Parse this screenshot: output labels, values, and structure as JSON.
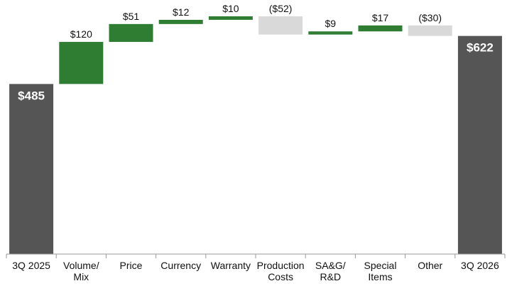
{
  "chart_data": {
    "type": "waterfall",
    "title": "",
    "xlabel": "",
    "ylabel": "",
    "categories": [
      [
        "3Q 2025"
      ],
      [
        "Volume/",
        "Mix"
      ],
      [
        "Price"
      ],
      [
        "Currency"
      ],
      [
        "Warranty"
      ],
      [
        "Production",
        "Costs"
      ],
      [
        "SA&G/",
        "R&D"
      ],
      [
        "Special",
        "Items"
      ],
      [
        "Other"
      ],
      [
        "3Q 2026"
      ]
    ],
    "values": [
      485,
      120,
      51,
      12,
      10,
      -52,
      9,
      17,
      -30,
      622
    ],
    "labels": [
      "$485",
      "$120",
      "$51",
      "$12",
      "$10",
      "($52)",
      "$9",
      "$17",
      "($30)",
      "$622"
    ],
    "kinds": [
      "total",
      "delta",
      "delta",
      "delta",
      "delta",
      "delta",
      "delta",
      "delta",
      "delta",
      "total"
    ],
    "ylim": [
      0,
      680
    ],
    "grid": false,
    "legend": "none",
    "colors": {
      "total": "#555555",
      "increase": "#2e7d32",
      "decrease": "#d9d9d9",
      "axis": "#999999"
    }
  }
}
